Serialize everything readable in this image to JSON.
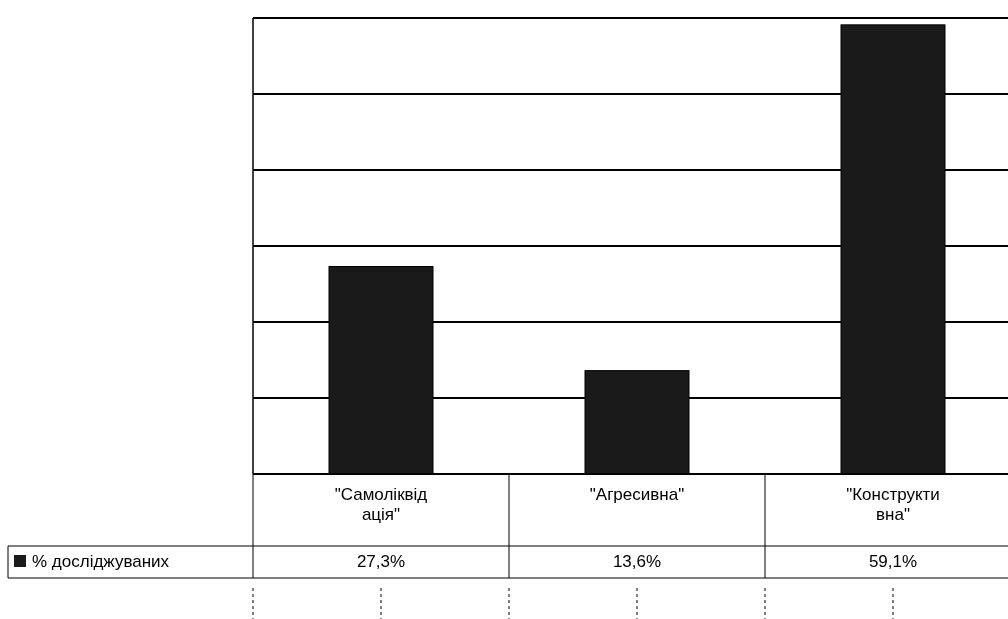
{
  "chart_data": {
    "type": "bar",
    "categories": [
      "\"Самоліквідація\"",
      "\"Агресивна\"",
      "\"Конструктивна\""
    ],
    "series": [
      {
        "name": "% досліджуваних",
        "color": "#1a1a1a",
        "values": [
          27.3,
          13.6,
          59.1
        ],
        "value_labels": [
          "27,3%",
          "13,6%",
          "59,1%"
        ]
      }
    ],
    "ylim": [
      0,
      60
    ],
    "yticks": [
      {
        "value": 0,
        "label": null
      },
      {
        "value": 10,
        "label": null
      },
      {
        "value": 20,
        "label": null
      },
      {
        "value": 30,
        "label": null
      },
      {
        "value": 40,
        "label": null
      },
      {
        "value": 50,
        "label": null
      },
      {
        "value": 60,
        "label": null
      }
    ],
    "grid": "y",
    "legend": "bottom left",
    "tick_labels": "x"
  }
}
